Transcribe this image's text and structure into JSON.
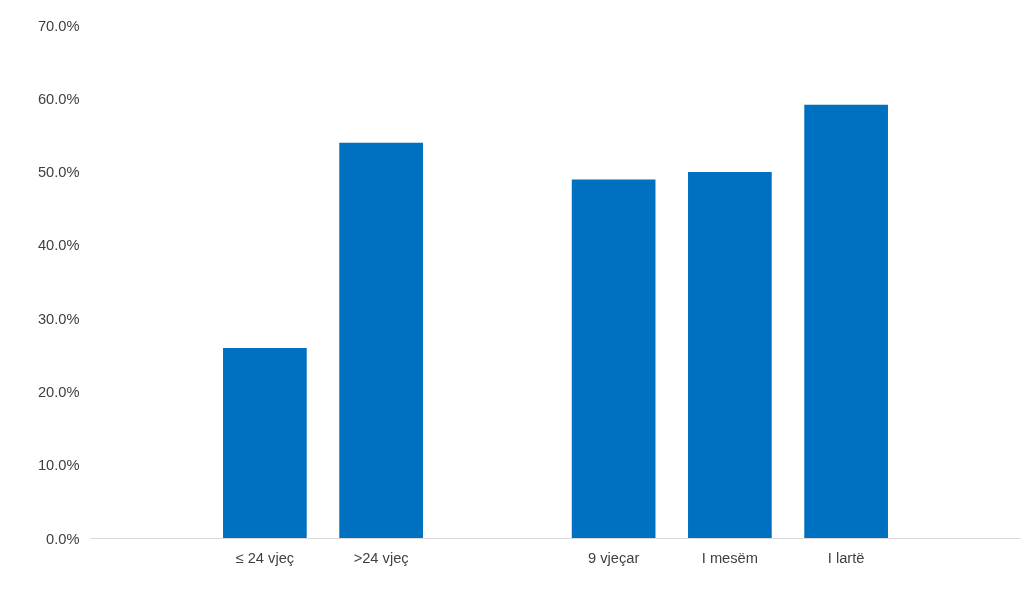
{
  "chart_data": {
    "type": "bar",
    "categories": [
      null,
      "≤ 24 vjeç",
      ">24 vjeç",
      null,
      "9 vjeçar",
      "I mesëm",
      "I lartë",
      null
    ],
    "values": [
      null,
      26.0,
      54.0,
      null,
      49.0,
      50.0,
      59.2,
      null
    ],
    "color": "#0070c0",
    "ylim": [
      0,
      70
    ],
    "yticks": [
      {
        "value": 0,
        "label": "0.0%"
      },
      {
        "value": 10,
        "label": "10.0%"
      },
      {
        "value": 20,
        "label": "20.0%"
      },
      {
        "value": 30,
        "label": "30.0%"
      },
      {
        "value": 40,
        "label": "40.0%"
      },
      {
        "value": 50,
        "label": "50.0%"
      },
      {
        "value": 60,
        "label": "60.0%"
      },
      {
        "value": 70,
        "label": "70.0%"
      }
    ],
    "grid": false
  }
}
